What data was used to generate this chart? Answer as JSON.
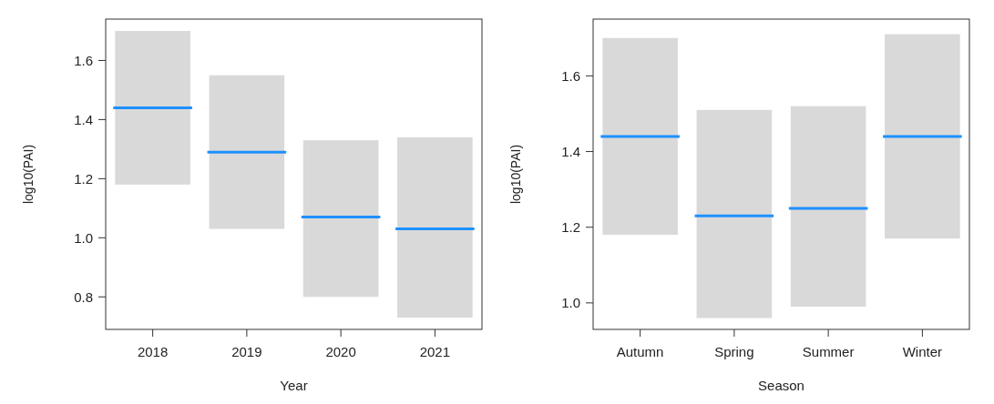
{
  "chart_data": [
    {
      "type": "box",
      "xlabel": "Year",
      "ylabel": "log10(PAI)",
      "categories": [
        "2018",
        "2019",
        "2020",
        "2021"
      ],
      "color": "#d9d9d9",
      "ylim": [
        0.69,
        1.74
      ],
      "yticks": [
        0.8,
        {
          "value": 1.0,
          "label": "1.0"
        },
        1.2,
        1.4,
        1.6
      ],
      "boxes": [
        {
          "low": 1.18,
          "q1": 1.18,
          "median": 1.44,
          "q3": 1.7,
          "high": 1.7
        },
        {
          "low": 1.03,
          "q1": 1.03,
          "median": 1.29,
          "q3": 1.55,
          "high": 1.55
        },
        {
          "low": 0.8,
          "q1": 0.8,
          "median": 1.07,
          "q3": 1.33,
          "high": 1.33
        },
        {
          "low": 0.73,
          "q1": 0.73,
          "median": 1.03,
          "q3": 1.34,
          "high": 1.34
        }
      ]
    },
    {
      "type": "box",
      "xlabel": "Season",
      "ylabel": "log10(PAI)",
      "categories": [
        "Autumn",
        "Spring",
        "Summer",
        "Winter"
      ],
      "color": "#d9d9d9",
      "ylim": [
        0.93,
        1.75
      ],
      "yticks": [
        {
          "value": 1.0,
          "label": "1.0"
        },
        1.2,
        1.4,
        1.6
      ],
      "boxes": [
        {
          "low": 1.18,
          "q1": 1.18,
          "median": 1.44,
          "q3": 1.7,
          "high": 1.7
        },
        {
          "low": 0.96,
          "q1": 0.96,
          "median": 1.23,
          "q3": 1.51,
          "high": 1.51
        },
        {
          "low": 0.99,
          "q1": 0.99,
          "median": 1.25,
          "q3": 1.52,
          "high": 1.52
        },
        {
          "low": 1.17,
          "q1": 1.17,
          "median": 1.44,
          "q3": 1.71,
          "high": 1.71
        }
      ]
    }
  ]
}
